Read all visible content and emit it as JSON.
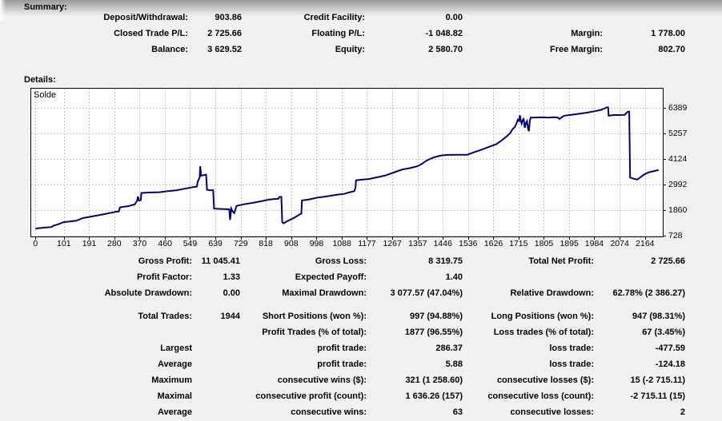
{
  "window": {
    "summary_heading": "Summary:",
    "details_heading": "Details:"
  },
  "summary_table": {
    "rows": [
      [
        "Deposit/Withdrawal:",
        "903.86",
        "Credit Facility:",
        "0.00",
        "",
        ""
      ],
      [
        "Closed Trade P/L:",
        "2 725.66",
        "Floating P/L:",
        "-1 048.82",
        "Margin:",
        "1 778.00"
      ],
      [
        "Balance:",
        "3 629.52",
        "Equity:",
        "2 580.70",
        "Free Margin:",
        "802.70"
      ]
    ]
  },
  "stats_table": {
    "rows": [
      [
        "Gross Profit:",
        "11 045.41",
        "Gross Loss:",
        "8 319.75",
        "Total Net Profit:",
        "2 725.66"
      ],
      [
        "Profit Factor:",
        "1.33",
        "Expected Payoff:",
        "1.40",
        "",
        ""
      ],
      [
        "Absolute Drawdown:",
        "0.00",
        "Maximal Drawdown:",
        "3 077.57 (47.04%)",
        "Relative Drawdown:",
        "62.78% (2 386.27)"
      ]
    ]
  },
  "trade_table": {
    "rows": [
      [
        "Total Trades:",
        "1944",
        "Short Positions (won %):",
        "997 (94.88%)",
        "Long Positions (won %):",
        "947 (98.31%)"
      ],
      [
        "",
        "",
        "Profit Trades (% of total):",
        "1877 (96.55%)",
        "Loss trades (% of total):",
        "67 (3.45%)"
      ],
      [
        "Largest",
        "",
        "profit trade:",
        "286.37",
        "loss trade:",
        "-477.59"
      ],
      [
        "Average",
        "",
        "profit trade:",
        "5.88",
        "loss trade:",
        "-124.18"
      ],
      [
        "Maximum",
        "",
        "consecutive wins ($):",
        "321 (1 258.60)",
        "consecutive losses ($):",
        "15 (-2 715.11)"
      ],
      [
        "Maximal",
        "",
        "consecutive profit (count):",
        "1 636.26 (157)",
        "consecutive loss (count):",
        "-2 715.11 (15)"
      ],
      [
        "Average",
        "",
        "consecutive wins:",
        "63",
        "consecutive losses:",
        "2"
      ]
    ]
  },
  "chart_data": {
    "type": "line",
    "title": "Solde",
    "legend_position": "top-left-inside",
    "grid": "dashed",
    "line_color": "#000080",
    "grid_color": "#c6c6c6",
    "plot_bg": "#ffffff",
    "border_color": "#000000",
    "xlabel": "",
    "ylabel": "",
    "x_ticks": [
      0,
      101,
      191,
      280,
      370,
      460,
      549,
      639,
      729,
      818,
      908,
      998,
      1088,
      1177,
      1267,
      1357,
      1446,
      1536,
      1626,
      1715,
      1805,
      1895,
      1984,
      2074,
      2164
    ],
    "y_ticks": [
      728,
      1860,
      2992,
      4124,
      5257,
      6389
    ],
    "x_range": [
      -15,
      2227
    ],
    "y_range": [
      699,
      7226
    ],
    "points": [
      [
        0,
        1050
      ],
      [
        22,
        1080
      ],
      [
        45,
        1105
      ],
      [
        58,
        1115
      ],
      [
        62,
        1165
      ],
      [
        80,
        1235
      ],
      [
        100,
        1330
      ],
      [
        122,
        1362
      ],
      [
        145,
        1395
      ],
      [
        168,
        1510
      ],
      [
        200,
        1580
      ],
      [
        232,
        1655
      ],
      [
        262,
        1730
      ],
      [
        288,
        1795
      ],
      [
        296,
        1800
      ],
      [
        300,
        1985
      ],
      [
        330,
        2040
      ],
      [
        352,
        2110
      ],
      [
        361,
        2280
      ],
      [
        364,
        2465
      ],
      [
        367,
        2290
      ],
      [
        374,
        2300
      ],
      [
        376,
        2620
      ],
      [
        400,
        2640
      ],
      [
        440,
        2655
      ],
      [
        470,
        2700
      ],
      [
        500,
        2740
      ],
      [
        523,
        2790
      ],
      [
        546,
        2845
      ],
      [
        560,
        2880
      ],
      [
        573,
        2900
      ],
      [
        576,
        3120
      ],
      [
        583,
        3300
      ],
      [
        585,
        3800
      ],
      [
        588,
        3380
      ],
      [
        596,
        3405
      ],
      [
        606,
        3430
      ],
      [
        609,
        2760
      ],
      [
        622,
        2740
      ],
      [
        631,
        2750
      ],
      [
        634,
        1930
      ],
      [
        652,
        1915
      ],
      [
        672,
        1905
      ],
      [
        688,
        1900
      ],
      [
        691,
        1430
      ],
      [
        695,
        1935
      ],
      [
        700,
        1805
      ],
      [
        706,
        1730
      ],
      [
        714,
        2050
      ],
      [
        740,
        2120
      ],
      [
        770,
        2180
      ],
      [
        800,
        2250
      ],
      [
        830,
        2330
      ],
      [
        845,
        2350
      ],
      [
        862,
        2365
      ],
      [
        866,
        2440
      ],
      [
        873,
        2445
      ],
      [
        876,
        1330
      ],
      [
        881,
        1280
      ],
      [
        896,
        1390
      ],
      [
        912,
        1480
      ],
      [
        926,
        1580
      ],
      [
        940,
        1690
      ],
      [
        944,
        1705
      ],
      [
        946,
        2290
      ],
      [
        962,
        2315
      ],
      [
        982,
        2360
      ],
      [
        1002,
        2420
      ],
      [
        1016,
        2440
      ],
      [
        1042,
        2485
      ],
      [
        1070,
        2540
      ],
      [
        1096,
        2580
      ],
      [
        1112,
        2640
      ],
      [
        1132,
        2700
      ],
      [
        1136,
        2845
      ],
      [
        1138,
        3180
      ],
      [
        1162,
        3215
      ],
      [
        1186,
        3240
      ],
      [
        1212,
        3310
      ],
      [
        1242,
        3390
      ],
      [
        1272,
        3520
      ],
      [
        1300,
        3650
      ],
      [
        1330,
        3720
      ],
      [
        1356,
        3800
      ],
      [
        1371,
        3900
      ],
      [
        1386,
        4030
      ],
      [
        1400,
        4120
      ],
      [
        1414,
        4190
      ],
      [
        1430,
        4245
      ],
      [
        1443,
        4280
      ],
      [
        1462,
        4300
      ],
      [
        1500,
        4310
      ],
      [
        1533,
        4310
      ],
      [
        1560,
        4430
      ],
      [
        1581,
        4520
      ],
      [
        1598,
        4600
      ],
      [
        1620,
        4700
      ],
      [
        1637,
        4780
      ],
      [
        1656,
        4950
      ],
      [
        1675,
        5140
      ],
      [
        1686,
        5280
      ],
      [
        1694,
        5440
      ],
      [
        1701,
        5520
      ],
      [
        1708,
        5700
      ],
      [
        1712,
        5850
      ],
      [
        1716,
        5800
      ],
      [
        1720,
        6050
      ],
      [
        1723,
        5800
      ],
      [
        1726,
        5680
      ],
      [
        1730,
        5850
      ],
      [
        1733,
        5890
      ],
      [
        1737,
        5500
      ],
      [
        1741,
        5700
      ],
      [
        1745,
        5790
      ],
      [
        1749,
        5440
      ],
      [
        1752,
        5350
      ],
      [
        1755,
        5800
      ],
      [
        1758,
        5950
      ],
      [
        1775,
        5952
      ],
      [
        1800,
        5960
      ],
      [
        1822,
        5950
      ],
      [
        1840,
        5962
      ],
      [
        1855,
        5950
      ],
      [
        1860,
        5890
      ],
      [
        1868,
        5960
      ],
      [
        1876,
        6030
      ],
      [
        1896,
        6060
      ],
      [
        1913,
        6090
      ],
      [
        1936,
        6130
      ],
      [
        1960,
        6170
      ],
      [
        1986,
        6230
      ],
      [
        2008,
        6290
      ],
      [
        2020,
        6350
      ],
      [
        2028,
        6400
      ],
      [
        2033,
        6400
      ],
      [
        2035,
        6030
      ],
      [
        2052,
        6060
      ],
      [
        2072,
        6062
      ],
      [
        2092,
        6070
      ],
      [
        2099,
        6170
      ],
      [
        2104,
        6210
      ],
      [
        2108,
        6210
      ],
      [
        2111,
        3300
      ],
      [
        2121,
        3260
      ],
      [
        2136,
        3210
      ],
      [
        2146,
        3300
      ],
      [
        2161,
        3440
      ],
      [
        2176,
        3530
      ],
      [
        2196,
        3590
      ],
      [
        2212,
        3630
      ]
    ]
  }
}
